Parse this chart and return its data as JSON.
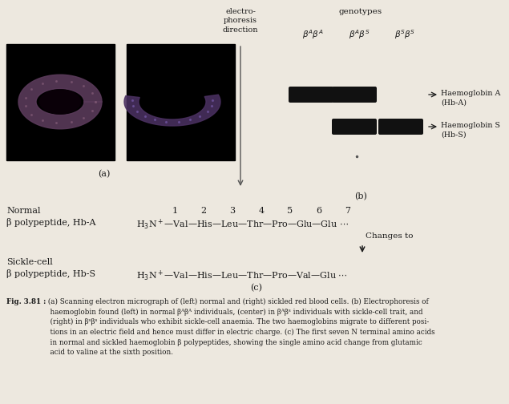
{
  "bg_color": "#ede8df",
  "text_color": "#1a1a1a",
  "band_color": "#111111",
  "electrophoresis_label": "electro-\nphoresis\ndirection",
  "genotypes_label": "genotypes",
  "label_a": "(a)",
  "label_b": "(b)",
  "label_c": "(c)",
  "normal_label1": "Normal",
  "normal_label2": "β polypeptide, Hb-A",
  "sickle_label1": "Sickle-cell",
  "sickle_label2": "β polypeptide, Hb-S",
  "numbers": [
    "1",
    "2",
    "3",
    "4",
    "5",
    "6",
    "7"
  ],
  "changes_to": "Changes to",
  "hba_label": "Haemoglobin A\n(Hb-A)",
  "hbs_label": "Haemoglobin S\n(Hb-S)",
  "caption_bold": "Fig. 3.81 :",
  "caption_text": " (a) Scanning electron micrograph of (left) normal and (right) sickled red blood cells. (b) Electrophoresis of\n  haemoglobin found (left) in normal βᴬβᴬ individuals, (center) in βᴬβˢ individuals with sickle-cell trait, and\n  (right) in βˢβˢ individuals who exhibit sickle-cell anaemia. The two haemoglobins migrate to different posi-\n  tions in an electric field and hence must differ in electric charge. (c) The first seven N terminal amino acids\n  in normal and sickled haemoglobin β polypeptides, showing the single amino acid change from glutamic\n  acid to valine at the sixth position."
}
